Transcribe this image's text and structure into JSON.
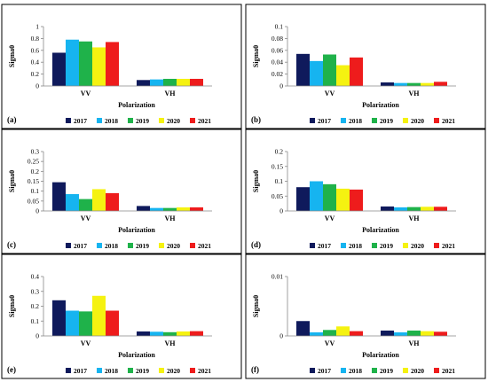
{
  "colors": {
    "2017": "#0f1a5c",
    "2018": "#16b4f0",
    "2019": "#1fb24a",
    "2020": "#f5f211",
    "2021": "#ee1c1c"
  },
  "chart_data": [
    {
      "type": "bar",
      "panel_label": "(a)",
      "categories": [
        "VV",
        "VH"
      ],
      "xlabel": "Polarization",
      "ylabel": "Sigma0",
      "ylim": [
        0,
        1
      ],
      "yticks": [
        "0",
        "0.2",
        "0.4",
        "0.6",
        "0.8",
        "1"
      ],
      "series": [
        {
          "name": "2017",
          "values": [
            0.56,
            0.1
          ]
        },
        {
          "name": "2018",
          "values": [
            0.78,
            0.11
          ]
        },
        {
          "name": "2019",
          "values": [
            0.75,
            0.12
          ]
        },
        {
          "name": "2020",
          "values": [
            0.65,
            0.12
          ]
        },
        {
          "name": "2021",
          "values": [
            0.74,
            0.12
          ]
        }
      ]
    },
    {
      "type": "bar",
      "panel_label": "(b)",
      "categories": [
        "VV",
        "VH"
      ],
      "xlabel": "Polarization",
      "ylabel": "Sigma0",
      "ylim": [
        0,
        0.1
      ],
      "yticks": [
        "0",
        "0.02",
        "0.04",
        "0.06",
        "0.08",
        "0.1"
      ],
      "series": [
        {
          "name": "2017",
          "values": [
            0.054,
            0.006
          ]
        },
        {
          "name": "2018",
          "values": [
            0.042,
            0.005
          ]
        },
        {
          "name": "2019",
          "values": [
            0.053,
            0.005
          ]
        },
        {
          "name": "2020",
          "values": [
            0.035,
            0.005
          ]
        },
        {
          "name": "2021",
          "values": [
            0.048,
            0.007
          ]
        }
      ]
    },
    {
      "type": "bar",
      "panel_label": "(c)",
      "categories": [
        "VV",
        "VH"
      ],
      "xlabel": "Polarization",
      "ylabel": "Sigma0",
      "ylim": [
        0,
        0.3
      ],
      "yticks": [
        "0",
        "0.05",
        "0.1",
        "0.15",
        "0.2",
        "0.25",
        "0.3"
      ],
      "series": [
        {
          "name": "2017",
          "values": [
            0.145,
            0.025
          ]
        },
        {
          "name": "2018",
          "values": [
            0.085,
            0.015
          ]
        },
        {
          "name": "2019",
          "values": [
            0.06,
            0.015
          ]
        },
        {
          "name": "2020",
          "values": [
            0.11,
            0.018
          ]
        },
        {
          "name": "2021",
          "values": [
            0.09,
            0.018
          ]
        }
      ]
    },
    {
      "type": "bar",
      "panel_label": "(d)",
      "categories": [
        "VV",
        "VH"
      ],
      "xlabel": "Polarization",
      "ylabel": "Sigma0",
      "ylim": [
        0,
        0.2
      ],
      "yticks": [
        "0",
        "0.05",
        "0.1",
        "0.15",
        "0.2"
      ],
      "series": [
        {
          "name": "2017",
          "values": [
            0.08,
            0.015
          ]
        },
        {
          "name": "2018",
          "values": [
            0.1,
            0.012
          ]
        },
        {
          "name": "2019",
          "values": [
            0.09,
            0.013
          ]
        },
        {
          "name": "2020",
          "values": [
            0.075,
            0.014
          ]
        },
        {
          "name": "2021",
          "values": [
            0.072,
            0.014
          ]
        }
      ]
    },
    {
      "type": "bar",
      "panel_label": "(e)",
      "categories": [
        "VV",
        "VH"
      ],
      "xlabel": "Polarization",
      "ylabel": "Sigma0",
      "ylim": [
        0,
        0.4
      ],
      "yticks": [
        "0",
        "0.1",
        "0.2",
        "0.3",
        "0.4"
      ],
      "series": [
        {
          "name": "2017",
          "values": [
            0.24,
            0.03
          ]
        },
        {
          "name": "2018",
          "values": [
            0.17,
            0.028
          ]
        },
        {
          "name": "2019",
          "values": [
            0.165,
            0.025
          ]
        },
        {
          "name": "2020",
          "values": [
            0.27,
            0.03
          ]
        },
        {
          "name": "2021",
          "values": [
            0.17,
            0.032
          ]
        }
      ]
    },
    {
      "type": "bar",
      "panel_label": "(f)",
      "categories": [
        "VV",
        "VH"
      ],
      "xlabel": "Polarization",
      "ylabel": "Sigma0",
      "ylim": [
        0,
        0.01
      ],
      "yticks": [
        "0",
        "0.01"
      ],
      "series": [
        {
          "name": "2017",
          "values": [
            0.0025,
            0.0009
          ]
        },
        {
          "name": "2018",
          "values": [
            0.0006,
            0.0006
          ]
        },
        {
          "name": "2019",
          "values": [
            0.001,
            0.0009
          ]
        },
        {
          "name": "2020",
          "values": [
            0.0016,
            0.0008
          ]
        },
        {
          "name": "2021",
          "values": [
            0.0008,
            0.0007
          ]
        }
      ]
    }
  ]
}
